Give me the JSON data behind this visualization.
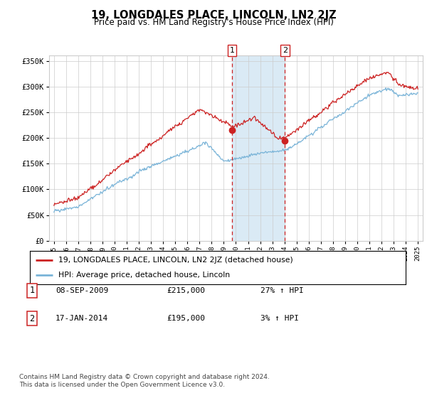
{
  "title": "19, LONGDALES PLACE, LINCOLN, LN2 2JZ",
  "subtitle": "Price paid vs. HM Land Registry's House Price Index (HPI)",
  "ylabel_ticks": [
    "£0",
    "£50K",
    "£100K",
    "£150K",
    "£200K",
    "£250K",
    "£300K",
    "£350K"
  ],
  "ytick_values": [
    0,
    50000,
    100000,
    150000,
    200000,
    250000,
    300000,
    350000
  ],
  "ylim": [
    0,
    360000
  ],
  "xlim": [
    1994.6,
    2025.4
  ],
  "sale1_date": "08-SEP-2009",
  "sale1_price": 215000,
  "sale1_hpi": "27% ↑ HPI",
  "sale1_label": "1",
  "sale1_x": 2009.69,
  "sale2_date": "17-JAN-2014",
  "sale2_price": 195000,
  "sale2_label": "2",
  "sale2_hpi": "3% ↑ HPI",
  "sale2_x": 2014.04,
  "hpi_color": "#7ab4d8",
  "price_color": "#cc2222",
  "marker_color": "#cc2222",
  "vline_color": "#cc2222",
  "shading_color": "#daeaf5",
  "grid_color": "#cccccc",
  "legend_label_price": "19, LONGDALES PLACE, LINCOLN, LN2 2JZ (detached house)",
  "legend_label_hpi": "HPI: Average price, detached house, Lincoln",
  "footer1": "Contains HM Land Registry data © Crown copyright and database right 2024.",
  "footer2": "This data is licensed under the Open Government Licence v3.0."
}
